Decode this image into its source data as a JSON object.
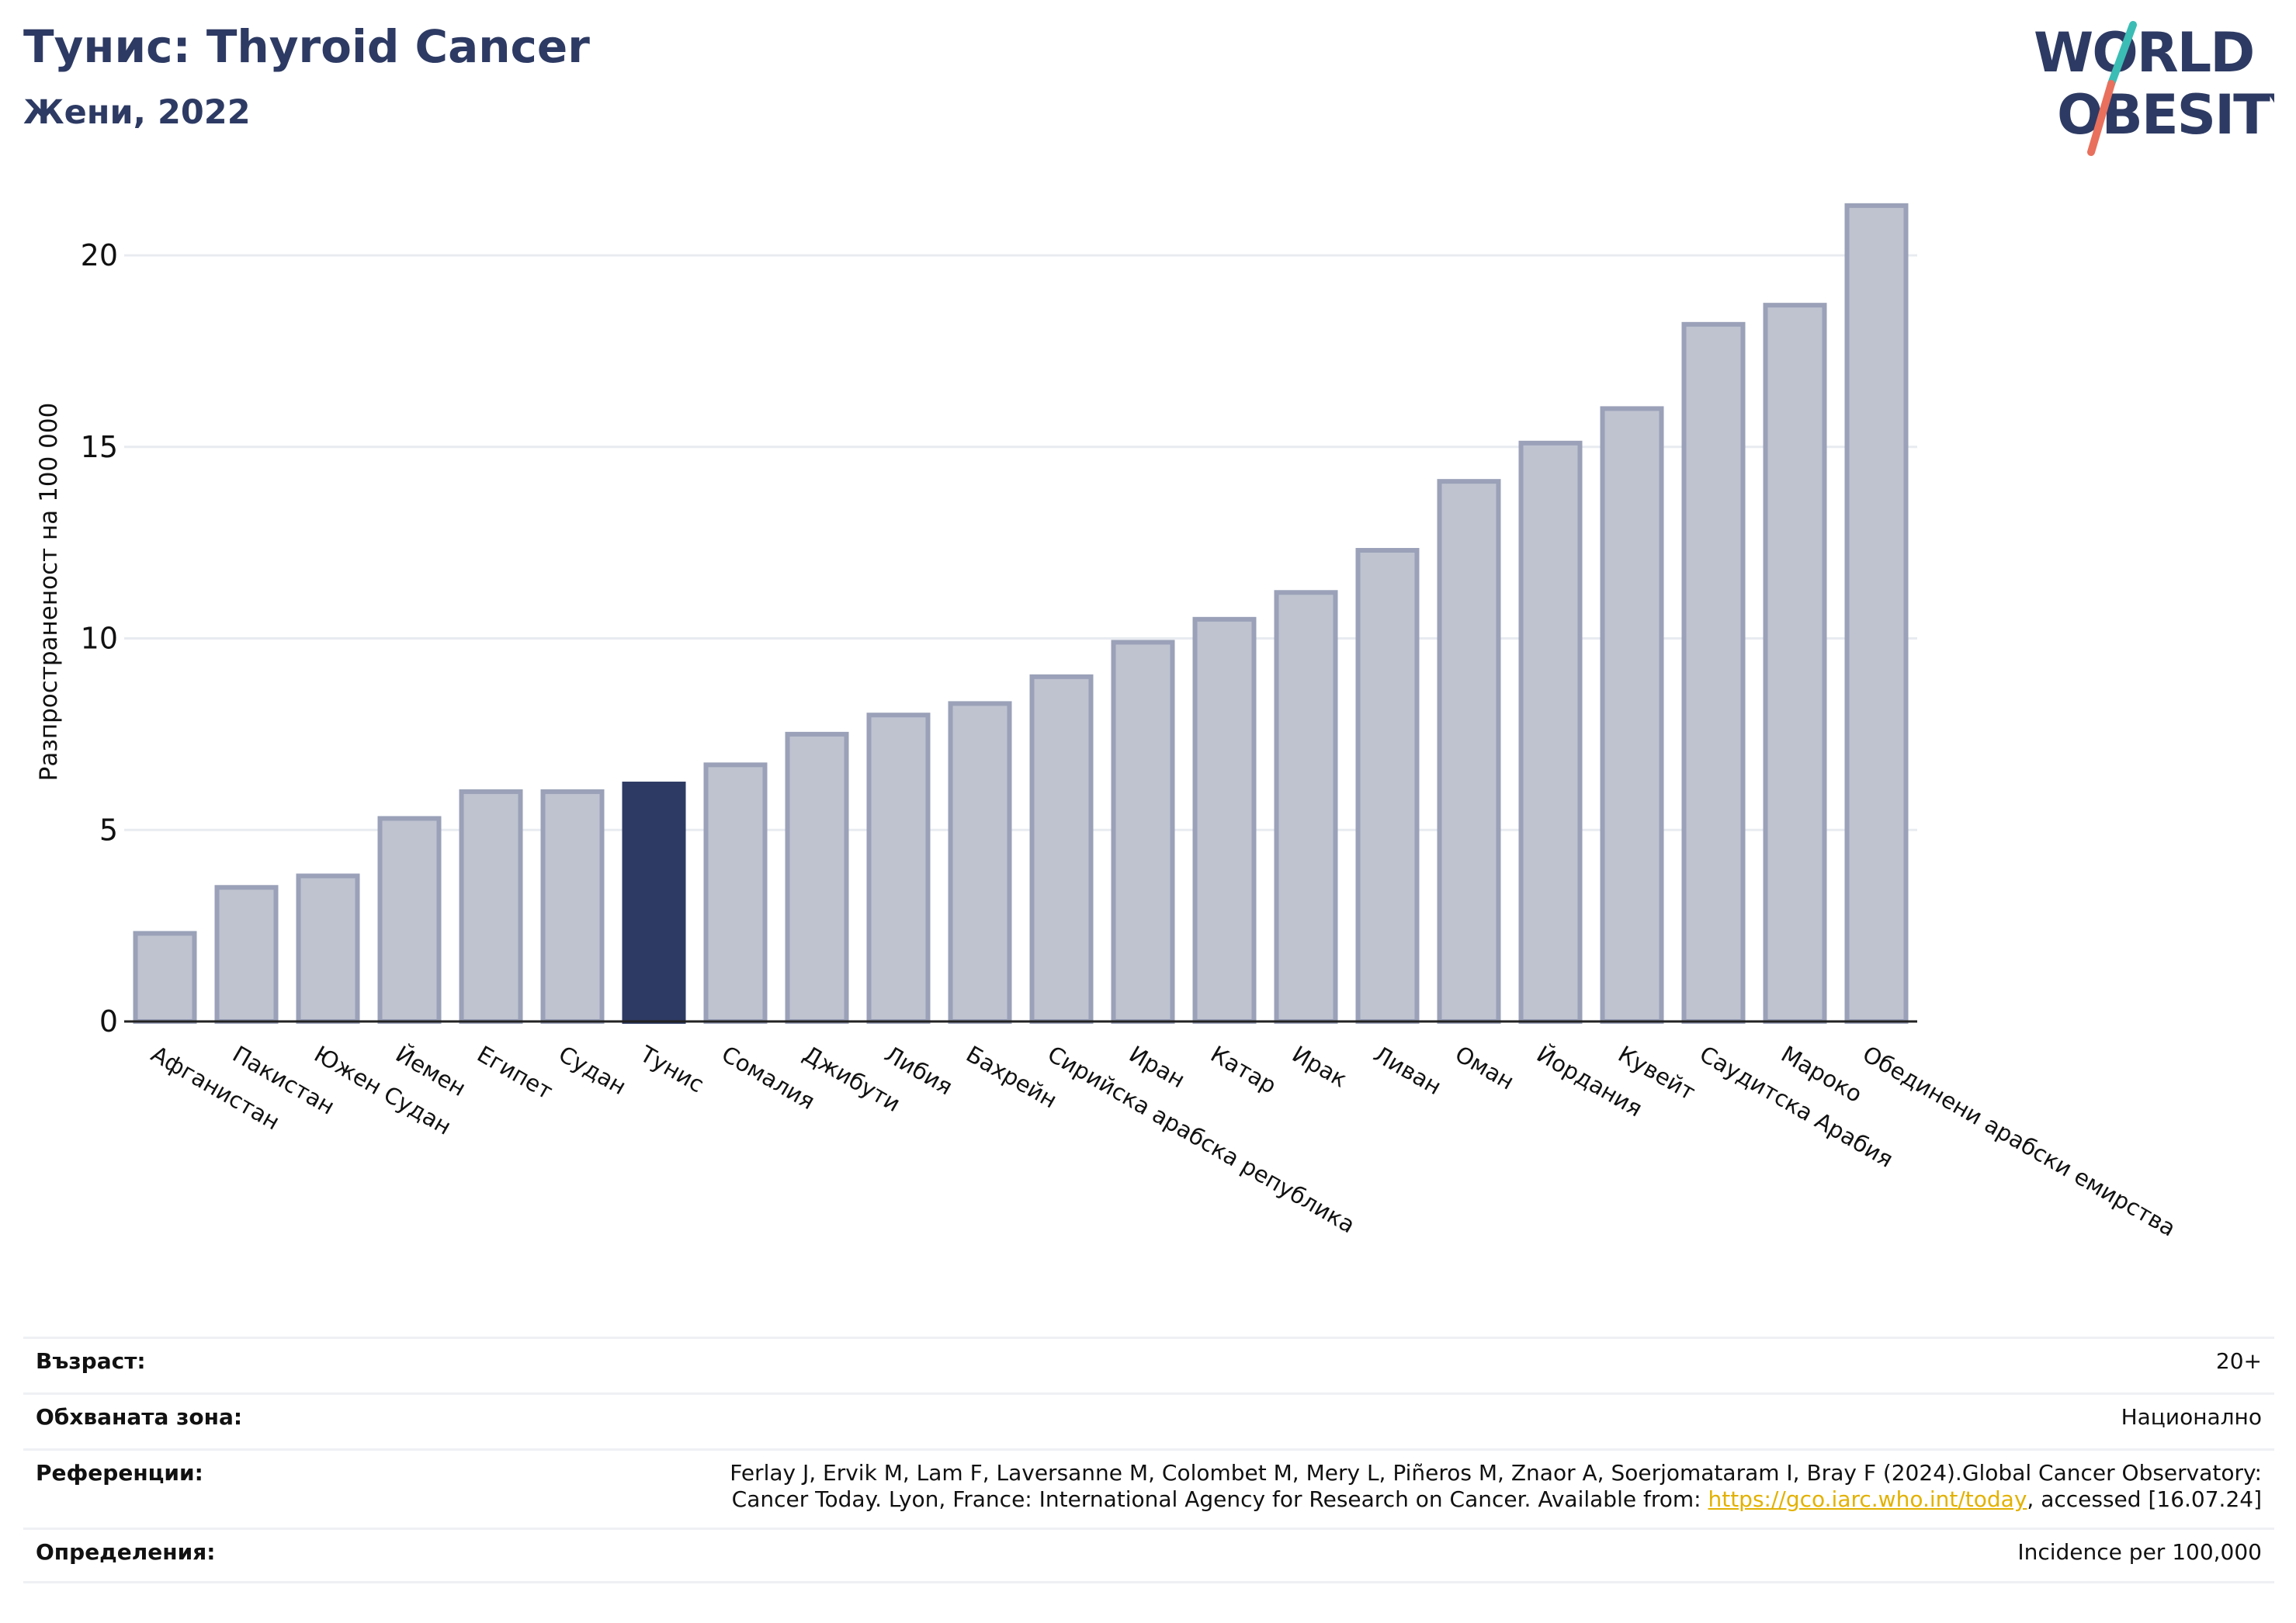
{
  "header": {
    "title": "Тунис: Thyroid Cancer",
    "subtitle": "Жени, 2022"
  },
  "logo": {
    "line1": "WORLD",
    "line2": "OBESITY",
    "colors": {
      "text": "#2d3a63",
      "slash_top": "#3bbdb5",
      "slash_bottom": "#e8705d"
    }
  },
  "colors": {
    "bar": "#bfc3d0",
    "bar_stroke": "#9aa1b8",
    "highlight": "#2d3a63",
    "grid": "#e8ebf0",
    "axis": "#222222",
    "link": "#e2b100"
  },
  "chart_data": {
    "type": "bar",
    "title": "Тунис: Thyroid Cancer",
    "subtitle": "Жени, 2022",
    "xlabel": "",
    "ylabel": "Разпространеност  на 100 000",
    "ylim": [
      0,
      22
    ],
    "yticks": [
      0,
      5,
      10,
      15,
      20
    ],
    "grid": true,
    "highlight": "Тунис",
    "categories": [
      "Афганистан",
      "Пакистан",
      "Южен Судан",
      "Йемен",
      "Египет",
      "Судан",
      "Тунис",
      "Сомалия",
      "Джибути",
      "Либия",
      "Бахрейн",
      "Сирийска арабска република",
      "Иран",
      "Катар",
      "Ирак",
      "Ливан",
      "Оман",
      "Йордания",
      "Кувейт",
      "Саудитска Арабия",
      "Мароко",
      "Обединени арабски емирства"
    ],
    "values": [
      2.3,
      3.5,
      3.8,
      5.3,
      6.0,
      6.0,
      6.2,
      6.7,
      7.5,
      8.0,
      8.3,
      9.0,
      9.9,
      10.5,
      11.2,
      12.3,
      14.1,
      15.1,
      16.0,
      18.2,
      18.7,
      21.3
    ]
  },
  "meta": [
    {
      "key": "Възраст:",
      "value": "20+"
    },
    {
      "key": "Обхваната зона:",
      "value": "Национално"
    },
    {
      "key": "Референции:",
      "value_line1": "Ferlay J, Ervik M, Lam F, Laversanne M, Colombet M, Mery L, Piñeros M, Znaor A, Soerjomataram I, Bray F (2024).Global Cancer Observatory:",
      "value_line2_pre": "Cancer Today. Lyon, France: International Agency for Research on Cancer. Available from: ",
      "link": "https://gco.iarc.who.int/today",
      "value_line2_post": ", accessed [16.07.24]"
    },
    {
      "key": "Определения:",
      "value": "Incidence per 100,000"
    }
  ]
}
